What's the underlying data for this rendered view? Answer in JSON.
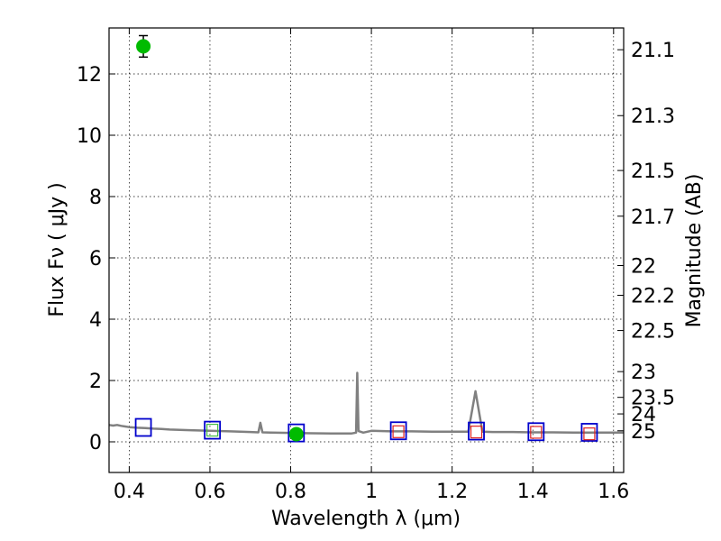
{
  "chart_data": {
    "type": "scatter",
    "xlabel": "Wavelength  λ (μm)",
    "ylabel": "Flux  Fν  ( μJy )",
    "y2label": "Magnitude (AB)",
    "xlim": [
      0.35,
      1.625
    ],
    "ylim": [
      -1.0,
      13.5
    ],
    "x_ticks": [
      0.4,
      0.6,
      0.8,
      1.0,
      1.2,
      1.4,
      1.6
    ],
    "x_tick_labels": [
      "0.4",
      "0.6",
      "0.8",
      "1",
      "1.2",
      "1.4",
      "1.6"
    ],
    "y_ticks": [
      0,
      2,
      4,
      6,
      8,
      10,
      12
    ],
    "y_tick_labels": [
      "0",
      "2",
      "4",
      "6",
      "8",
      "10",
      "12"
    ],
    "y2_ticks": [
      {
        "label": "21.1",
        "flux": 12.79
      },
      {
        "label": "21.3",
        "flux": 10.64
      },
      {
        "label": "21.5",
        "flux": 8.85
      },
      {
        "label": "21.7",
        "flux": 7.36
      },
      {
        "label": "22",
        "flux": 5.75
      },
      {
        "label": "22.2",
        "flux": 4.78
      },
      {
        "label": "22.5",
        "flux": 3.63
      },
      {
        "label": "23",
        "flux": 2.29
      },
      {
        "label": "23.5",
        "flux": 1.45
      },
      {
        "label": "24",
        "flux": 0.91
      },
      {
        "label": "25",
        "flux": 0.36
      }
    ],
    "grid": true,
    "series": [
      {
        "kind": "model-spectrum",
        "color": "#808080",
        "points": [
          [
            0.35,
            0.55
          ],
          [
            0.36,
            0.53
          ],
          [
            0.37,
            0.55
          ],
          [
            0.38,
            0.52
          ],
          [
            0.39,
            0.5
          ],
          [
            0.4,
            0.48
          ],
          [
            0.42,
            0.46
          ],
          [
            0.44,
            0.45
          ],
          [
            0.46,
            0.43
          ],
          [
            0.48,
            0.42
          ],
          [
            0.5,
            0.4
          ],
          [
            0.55,
            0.38
          ],
          [
            0.6,
            0.36
          ],
          [
            0.65,
            0.34
          ],
          [
            0.7,
            0.32
          ],
          [
            0.72,
            0.31
          ],
          [
            0.725,
            0.62
          ],
          [
            0.73,
            0.31
          ],
          [
            0.75,
            0.3
          ],
          [
            0.8,
            0.29
          ],
          [
            0.85,
            0.28
          ],
          [
            0.9,
            0.27
          ],
          [
            0.95,
            0.27
          ],
          [
            0.962,
            0.3
          ],
          [
            0.965,
            2.25
          ],
          [
            0.968,
            0.35
          ],
          [
            0.98,
            0.3
          ],
          [
            1.0,
            0.36
          ],
          [
            1.05,
            0.34
          ],
          [
            1.1,
            0.34
          ],
          [
            1.15,
            0.33
          ],
          [
            1.2,
            0.33
          ],
          [
            1.24,
            0.33
          ],
          [
            1.258,
            1.65
          ],
          [
            1.275,
            0.33
          ],
          [
            1.3,
            0.32
          ],
          [
            1.35,
            0.32
          ],
          [
            1.4,
            0.31
          ],
          [
            1.45,
            0.31
          ],
          [
            1.5,
            0.3
          ],
          [
            1.55,
            0.3
          ],
          [
            1.6,
            0.3
          ],
          [
            1.625,
            0.3
          ]
        ]
      },
      {
        "kind": "model-photometry",
        "marker": "square",
        "color": "#0000cc",
        "points": [
          [
            0.435,
            0.47
          ],
          [
            0.606,
            0.38
          ],
          [
            0.814,
            0.29
          ],
          [
            1.067,
            0.36
          ],
          [
            1.26,
            0.35
          ],
          [
            1.408,
            0.33
          ],
          [
            1.54,
            0.31
          ]
        ]
      },
      {
        "kind": "observed-photometry",
        "marker": "circle",
        "color": "#00bb00",
        "error_color": "#000000",
        "points": [
          {
            "x": 0.435,
            "y": 12.9,
            "yerr": 0.35
          },
          {
            "x": 0.814,
            "y": 0.25,
            "yerr": 0.12
          }
        ]
      },
      {
        "kind": "upper-limits",
        "marker": "small-square",
        "color": "#dd2222",
        "points": [
          [
            1.067,
            0.33
          ],
          [
            1.26,
            0.32
          ],
          [
            1.408,
            0.31
          ],
          [
            1.54,
            0.26
          ]
        ]
      },
      {
        "kind": "inner-marker",
        "marker": "small-square",
        "color": "#44bb44",
        "points": [
          [
            0.606,
            0.38
          ]
        ]
      }
    ]
  }
}
